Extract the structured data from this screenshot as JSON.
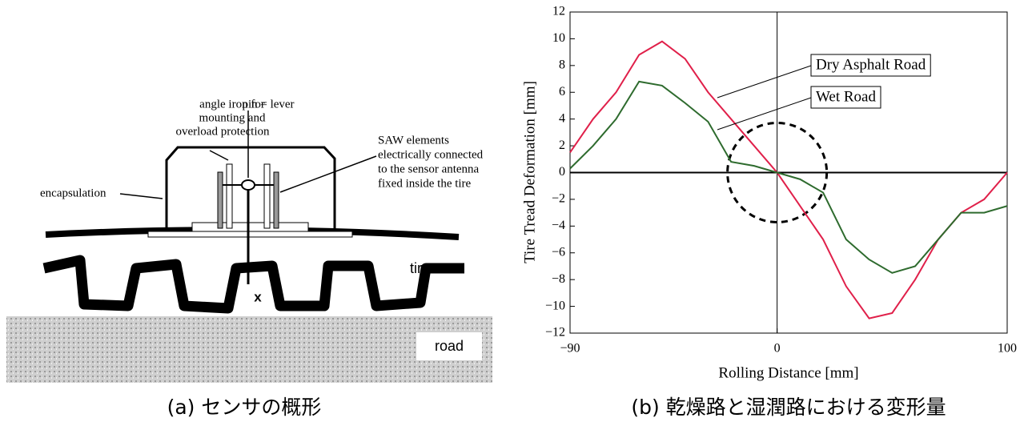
{
  "diagram": {
    "labels": {
      "angle_iron": [
        "angle iron for",
        "mounting and",
        "overload protection"
      ],
      "pin": "pin = lever",
      "saw": [
        "SAW elements",
        "electrically connected",
        "to the sensor antenna",
        "fixed inside the tire"
      ],
      "encapsulation": "encapsulation",
      "tire": "tire",
      "x": "x",
      "road": "road"
    },
    "caption": "(a) センサの概形"
  },
  "chart_data": {
    "type": "line",
    "caption": "(b) 乾燥路と湿潤路における変形量",
    "x_label": "Rolling Distance [mm]",
    "y_label": "Tire Tread Deformation [mm]",
    "x": [
      -90,
      -80,
      -70,
      -60,
      -50,
      -40,
      -30,
      -20,
      -10,
      0,
      10,
      20,
      30,
      40,
      50,
      60,
      70,
      80,
      90,
      100
    ],
    "series": [
      {
        "name": "Dry Asphalt Road",
        "color": "#e0204a",
        "values": [
          1.5,
          4,
          6,
          8.8,
          9.8,
          8.5,
          6,
          4,
          2,
          0,
          -2.5,
          -5,
          -8.5,
          -10.9,
          -10.5,
          -8,
          -5,
          -3,
          -2,
          0
        ]
      },
      {
        "name": "Wet Road",
        "color": "#2e6b2e",
        "values": [
          0.3,
          2,
          4,
          6.8,
          6.5,
          5.2,
          3.8,
          0.8,
          0.5,
          0,
          -0.5,
          -1.5,
          -5,
          -6.5,
          -7.5,
          -7,
          -5,
          -3,
          -3,
          -2.5
        ]
      }
    ],
    "xlim": [
      -90,
      100
    ],
    "xticks": [
      {
        "value": -90,
        "label": "−90"
      },
      0,
      100
    ],
    "ylim": [
      -12,
      12
    ],
    "yticks": [
      {
        "value": -12,
        "label": "−12"
      },
      {
        "value": -10,
        "label": "−10"
      },
      {
        "value": -8,
        "label": "−8"
      },
      {
        "value": -6,
        "label": "−6"
      },
      {
        "value": -4,
        "label": "−4"
      },
      {
        "value": -2,
        "label": "−2"
      },
      0,
      2,
      4,
      6,
      8,
      10,
      12
    ]
  }
}
